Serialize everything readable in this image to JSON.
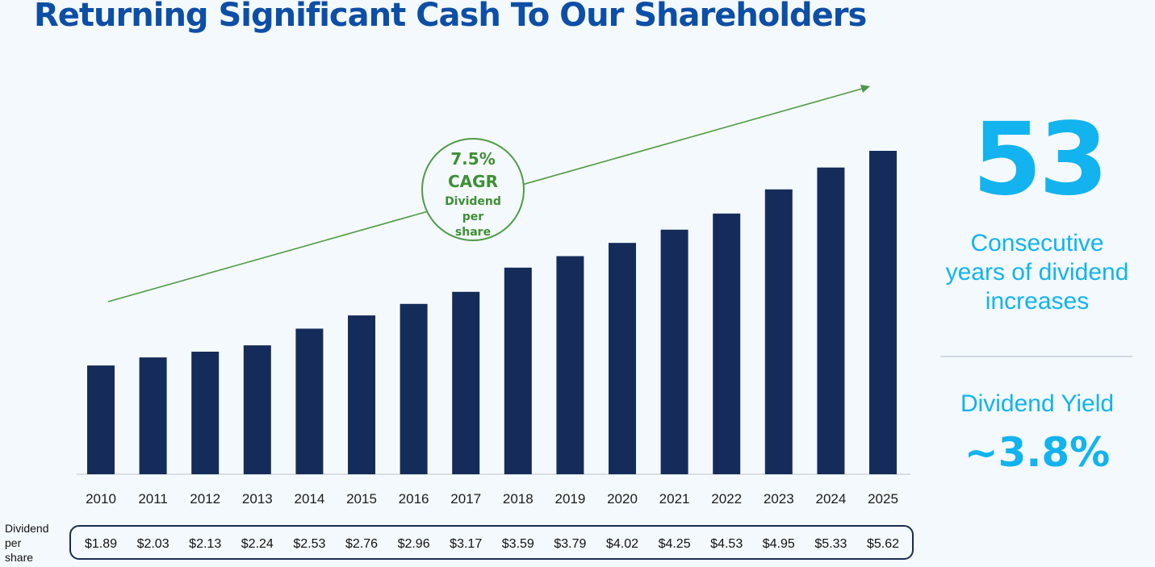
{
  "title": "Returning Significant Cash To Our Shareholders",
  "colors": {
    "bar": "#152c5a",
    "accent": "#12b3ee",
    "trend": "#4f9a45",
    "title": "#0d4ea6"
  },
  "cagr": {
    "pct": "7.5%",
    "label": "CAGR",
    "sub": [
      "Dividend",
      "per",
      "share"
    ]
  },
  "streak": {
    "number": "53",
    "label": [
      "Consecutive",
      "years of dividend",
      "increases"
    ]
  },
  "yield": {
    "label": "Dividend Yield",
    "value": "~3.8%"
  },
  "row_label": [
    "Dividend",
    "per",
    "share"
  ],
  "chart_data": {
    "type": "bar",
    "categories": [
      "2010",
      "2011",
      "2012",
      "2013",
      "2014",
      "2015",
      "2016",
      "2017",
      "2018",
      "2019",
      "2020",
      "2021",
      "2022",
      "2023",
      "2024",
      "2025"
    ],
    "values": [
      1.89,
      2.03,
      2.13,
      2.24,
      2.53,
      2.76,
      2.96,
      3.17,
      3.59,
      3.79,
      4.02,
      4.25,
      4.53,
      4.95,
      5.33,
      5.62
    ],
    "value_labels": [
      "$1.89",
      "$2.03",
      "$2.13",
      "$2.24",
      "$2.53",
      "$2.76",
      "$2.96",
      "$3.17",
      "$3.59",
      "$3.79",
      "$4.02",
      "$4.25",
      "$4.53",
      "$4.95",
      "$5.33",
      "$5.62"
    ],
    "ylim": [
      0,
      5.62
    ],
    "grid": false,
    "legend": "none",
    "trend_arrow": true
  }
}
